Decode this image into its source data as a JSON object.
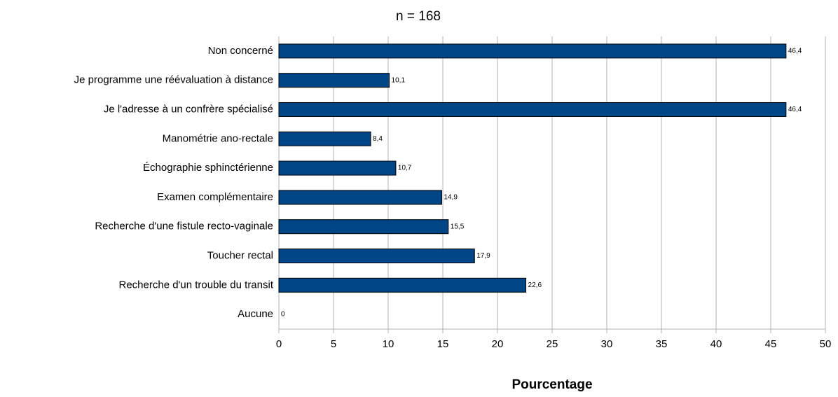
{
  "chart_data": {
    "type": "bar",
    "orientation": "horizontal",
    "title": "n = 168",
    "xlabel": "Pourcentage",
    "categories": [
      "Non concerné",
      "Je programme une réévaluation à distance",
      "Je l'adresse à un confrère spécialisé",
      "Manométrie ano-rectale",
      "Échographie sphinctérienne",
      "Examen complémentaire",
      "Recherche d'une fistule recto-vaginale",
      "Toucher rectal",
      "Recherche d'un trouble du transit",
      "Aucune"
    ],
    "values": [
      46.4,
      10.1,
      46.4,
      8.4,
      10.7,
      14.9,
      15.5,
      17.9,
      22.6,
      0
    ],
    "value_labels": [
      "46,4",
      "10,1",
      "46,4",
      "8,4",
      "10,7",
      "14,9",
      "15,5",
      "17,9",
      "22,6",
      "0"
    ],
    "color": "#004586",
    "xlim": [
      0,
      50
    ],
    "xticks": [
      0,
      5,
      10,
      15,
      20,
      25,
      30,
      35,
      40,
      45,
      50
    ],
    "grid": true
  }
}
